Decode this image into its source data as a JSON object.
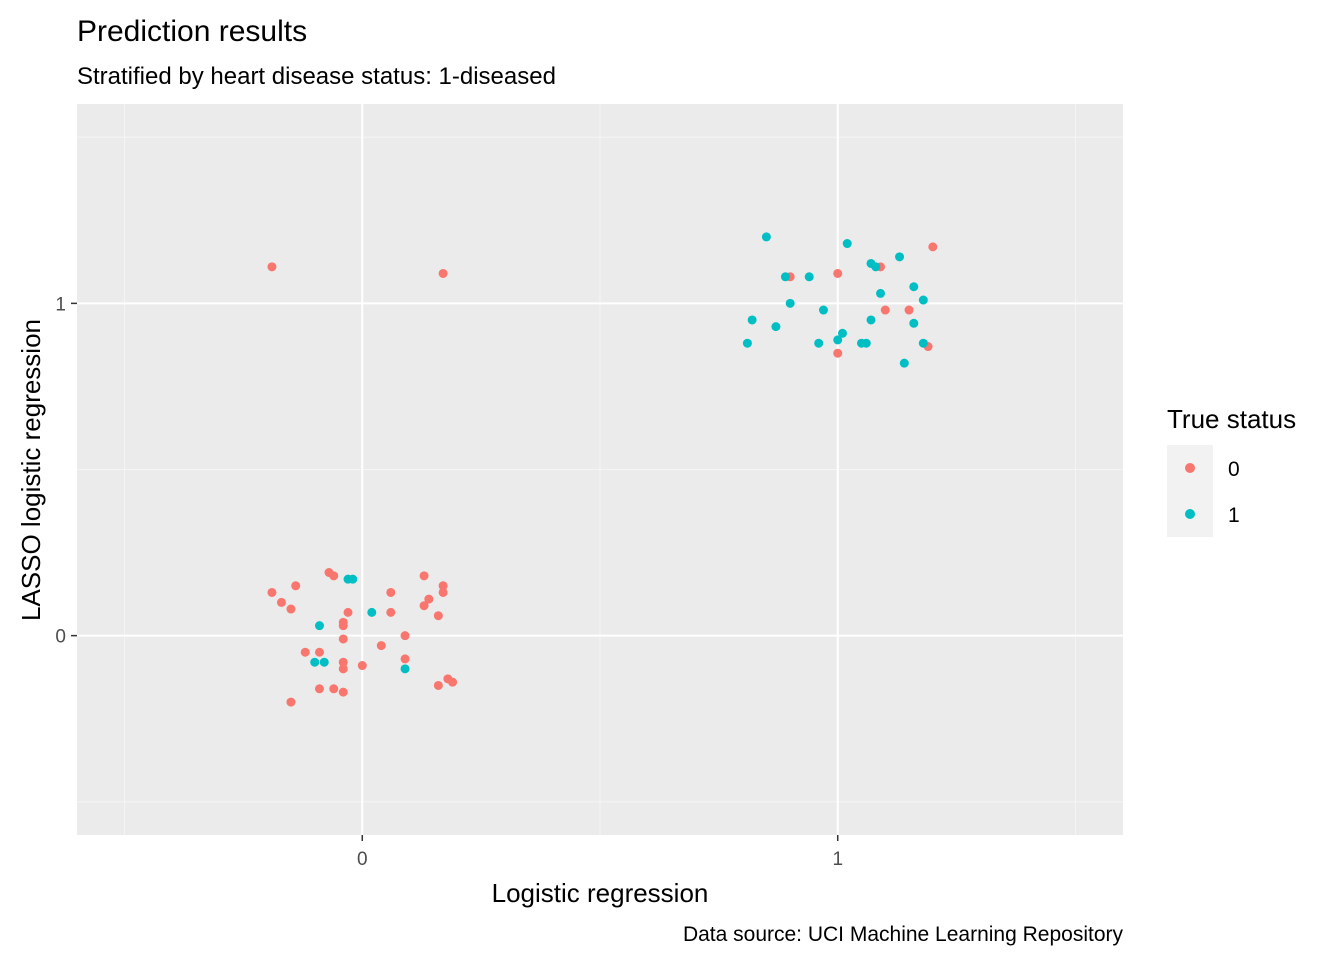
{
  "chart_data": {
    "type": "scatter",
    "title": "Prediction results",
    "subtitle": "Stratified by heart disease status: 1-diseased",
    "caption": "Data source: UCI Machine Learning Repository",
    "xlabel": "Logistic regression",
    "ylabel": "LASSO logistic regression",
    "xlim": [
      -0.6,
      1.6
    ],
    "ylim": [
      -0.6,
      1.6
    ],
    "x_ticks": [
      0,
      1
    ],
    "y_ticks": [
      0,
      1
    ],
    "x_tick_labels": [
      "0",
      "1"
    ],
    "y_tick_labels": [
      "0",
      "1"
    ],
    "grid": true,
    "legend_title": "True status",
    "legend_position": "right",
    "panel_background": "#EBEBEB",
    "series": [
      {
        "name": "0",
        "color": "#F8766D",
        "points": [
          [
            -0.19,
            1.11
          ],
          [
            0.17,
            1.09
          ],
          [
            -0.19,
            0.13
          ],
          [
            -0.17,
            0.1
          ],
          [
            -0.15,
            0.08
          ],
          [
            -0.14,
            0.15
          ],
          [
            -0.07,
            0.19
          ],
          [
            -0.06,
            0.18
          ],
          [
            -0.04,
            0.03
          ],
          [
            -0.04,
            0.04
          ],
          [
            -0.03,
            0.07
          ],
          [
            0.06,
            0.13
          ],
          [
            0.06,
            0.07
          ],
          [
            0.13,
            0.18
          ],
          [
            0.14,
            0.11
          ],
          [
            0.13,
            0.09
          ],
          [
            0.17,
            0.15
          ],
          [
            0.17,
            0.13
          ],
          [
            0.16,
            0.06
          ],
          [
            -0.04,
            -0.01
          ],
          [
            -0.12,
            -0.05
          ],
          [
            -0.09,
            -0.05
          ],
          [
            -0.04,
            -0.08
          ],
          [
            -0.04,
            -0.1
          ],
          [
            0.0,
            -0.09
          ],
          [
            0.04,
            -0.03
          ],
          [
            0.09,
            0.0
          ],
          [
            0.09,
            -0.07
          ],
          [
            -0.09,
            -0.16
          ],
          [
            -0.06,
            -0.16
          ],
          [
            -0.04,
            -0.17
          ],
          [
            -0.15,
            -0.2
          ],
          [
            0.16,
            -0.15
          ],
          [
            0.18,
            -0.13
          ],
          [
            0.19,
            -0.14
          ],
          [
            0.9,
            1.08
          ],
          [
            1.0,
            1.09
          ],
          [
            1.09,
            1.11
          ],
          [
            1.2,
            1.17
          ],
          [
            1.1,
            0.98
          ],
          [
            1.15,
            0.98
          ],
          [
            1.0,
            0.85
          ],
          [
            1.19,
            0.87
          ]
        ]
      },
      {
        "name": "1",
        "color": "#00BFC4",
        "points": [
          [
            -0.03,
            0.17
          ],
          [
            -0.02,
            0.17
          ],
          [
            0.02,
            0.07
          ],
          [
            -0.09,
            0.03
          ],
          [
            -0.1,
            -0.08
          ],
          [
            -0.08,
            -0.08
          ],
          [
            0.09,
            -0.1
          ],
          [
            0.85,
            1.2
          ],
          [
            0.89,
            1.08
          ],
          [
            0.94,
            1.08
          ],
          [
            1.02,
            1.18
          ],
          [
            1.07,
            1.12
          ],
          [
            1.08,
            1.11
          ],
          [
            1.13,
            1.14
          ],
          [
            0.9,
            1.0
          ],
          [
            0.97,
            0.98
          ],
          [
            1.09,
            1.03
          ],
          [
            1.16,
            1.05
          ],
          [
            1.18,
            1.01
          ],
          [
            0.82,
            0.95
          ],
          [
            0.87,
            0.93
          ],
          [
            1.01,
            0.91
          ],
          [
            1.0,
            0.89
          ],
          [
            0.96,
            0.88
          ],
          [
            1.05,
            0.88
          ],
          [
            1.06,
            0.88
          ],
          [
            1.07,
            0.95
          ],
          [
            1.16,
            0.94
          ],
          [
            0.81,
            0.88
          ],
          [
            1.14,
            0.82
          ],
          [
            1.18,
            0.88
          ]
        ]
      }
    ]
  }
}
